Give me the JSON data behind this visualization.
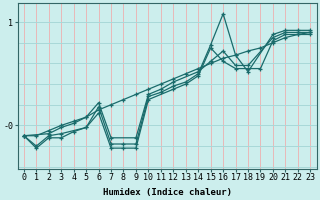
{
  "title": "",
  "xlabel": "Humidex (Indice chaleur)",
  "ylabel": "",
  "bg_color": "#cceeed",
  "vgrid_color": "#e8b8b8",
  "hgrid_color": "#a8d8d8",
  "line_color": "#1a6b6b",
  "xlim": [
    -0.5,
    23.5
  ],
  "ylim": [
    -0.42,
    1.18
  ],
  "yticks": [
    0,
    1
  ],
  "ytick_labels": [
    "-0",
    "1"
  ],
  "xticks": [
    0,
    1,
    2,
    3,
    4,
    5,
    6,
    7,
    8,
    9,
    10,
    11,
    12,
    13,
    14,
    15,
    16,
    17,
    18,
    19,
    20,
    21,
    22,
    23
  ],
  "lines": [
    {
      "x": [
        0,
        1,
        2,
        3,
        4,
        5,
        6,
        7,
        8,
        9,
        10,
        11,
        12,
        13,
        14,
        15,
        16,
        17,
        18,
        20,
        21,
        22,
        23
      ],
      "y": [
        -0.1,
        -0.22,
        -0.12,
        -0.12,
        -0.06,
        -0.02,
        0.18,
        -0.18,
        -0.18,
        -0.18,
        0.28,
        0.32,
        0.38,
        0.42,
        0.5,
        0.78,
        1.08,
        0.68,
        0.52,
        0.88,
        0.92,
        0.92,
        0.92
      ]
    },
    {
      "x": [
        0,
        2,
        3,
        4,
        5,
        6,
        7,
        9,
        10,
        11,
        12,
        14,
        15,
        16,
        17,
        18,
        20,
        21,
        22,
        23
      ],
      "y": [
        -0.1,
        -0.08,
        -0.02,
        0.02,
        0.08,
        0.22,
        -0.12,
        -0.12,
        0.3,
        0.35,
        0.42,
        0.52,
        0.62,
        0.72,
        0.58,
        0.58,
        0.85,
        0.9,
        0.9,
        0.9
      ]
    },
    {
      "x": [
        0,
        1,
        2,
        3,
        4,
        5,
        6,
        7,
        8,
        9,
        10,
        11,
        12,
        13,
        14,
        15,
        16,
        17,
        18,
        19,
        20,
        21,
        22,
        23
      ],
      "y": [
        -0.1,
        -0.1,
        -0.05,
        0.0,
        0.04,
        0.08,
        0.15,
        0.2,
        0.25,
        0.3,
        0.35,
        0.4,
        0.45,
        0.5,
        0.55,
        0.6,
        0.65,
        0.68,
        0.72,
        0.75,
        0.8,
        0.85,
        0.88,
        0.9
      ]
    },
    {
      "x": [
        0,
        1,
        2,
        3,
        5,
        6,
        7,
        8,
        9,
        10,
        12,
        13,
        14,
        15,
        16,
        17,
        18,
        19,
        20,
        21,
        22,
        23
      ],
      "y": [
        -0.1,
        -0.2,
        -0.1,
        -0.08,
        -0.02,
        0.12,
        -0.22,
        -0.22,
        -0.22,
        0.25,
        0.35,
        0.4,
        0.48,
        0.75,
        0.62,
        0.55,
        0.55,
        0.55,
        0.82,
        0.88,
        0.88,
        0.88
      ]
    }
  ]
}
